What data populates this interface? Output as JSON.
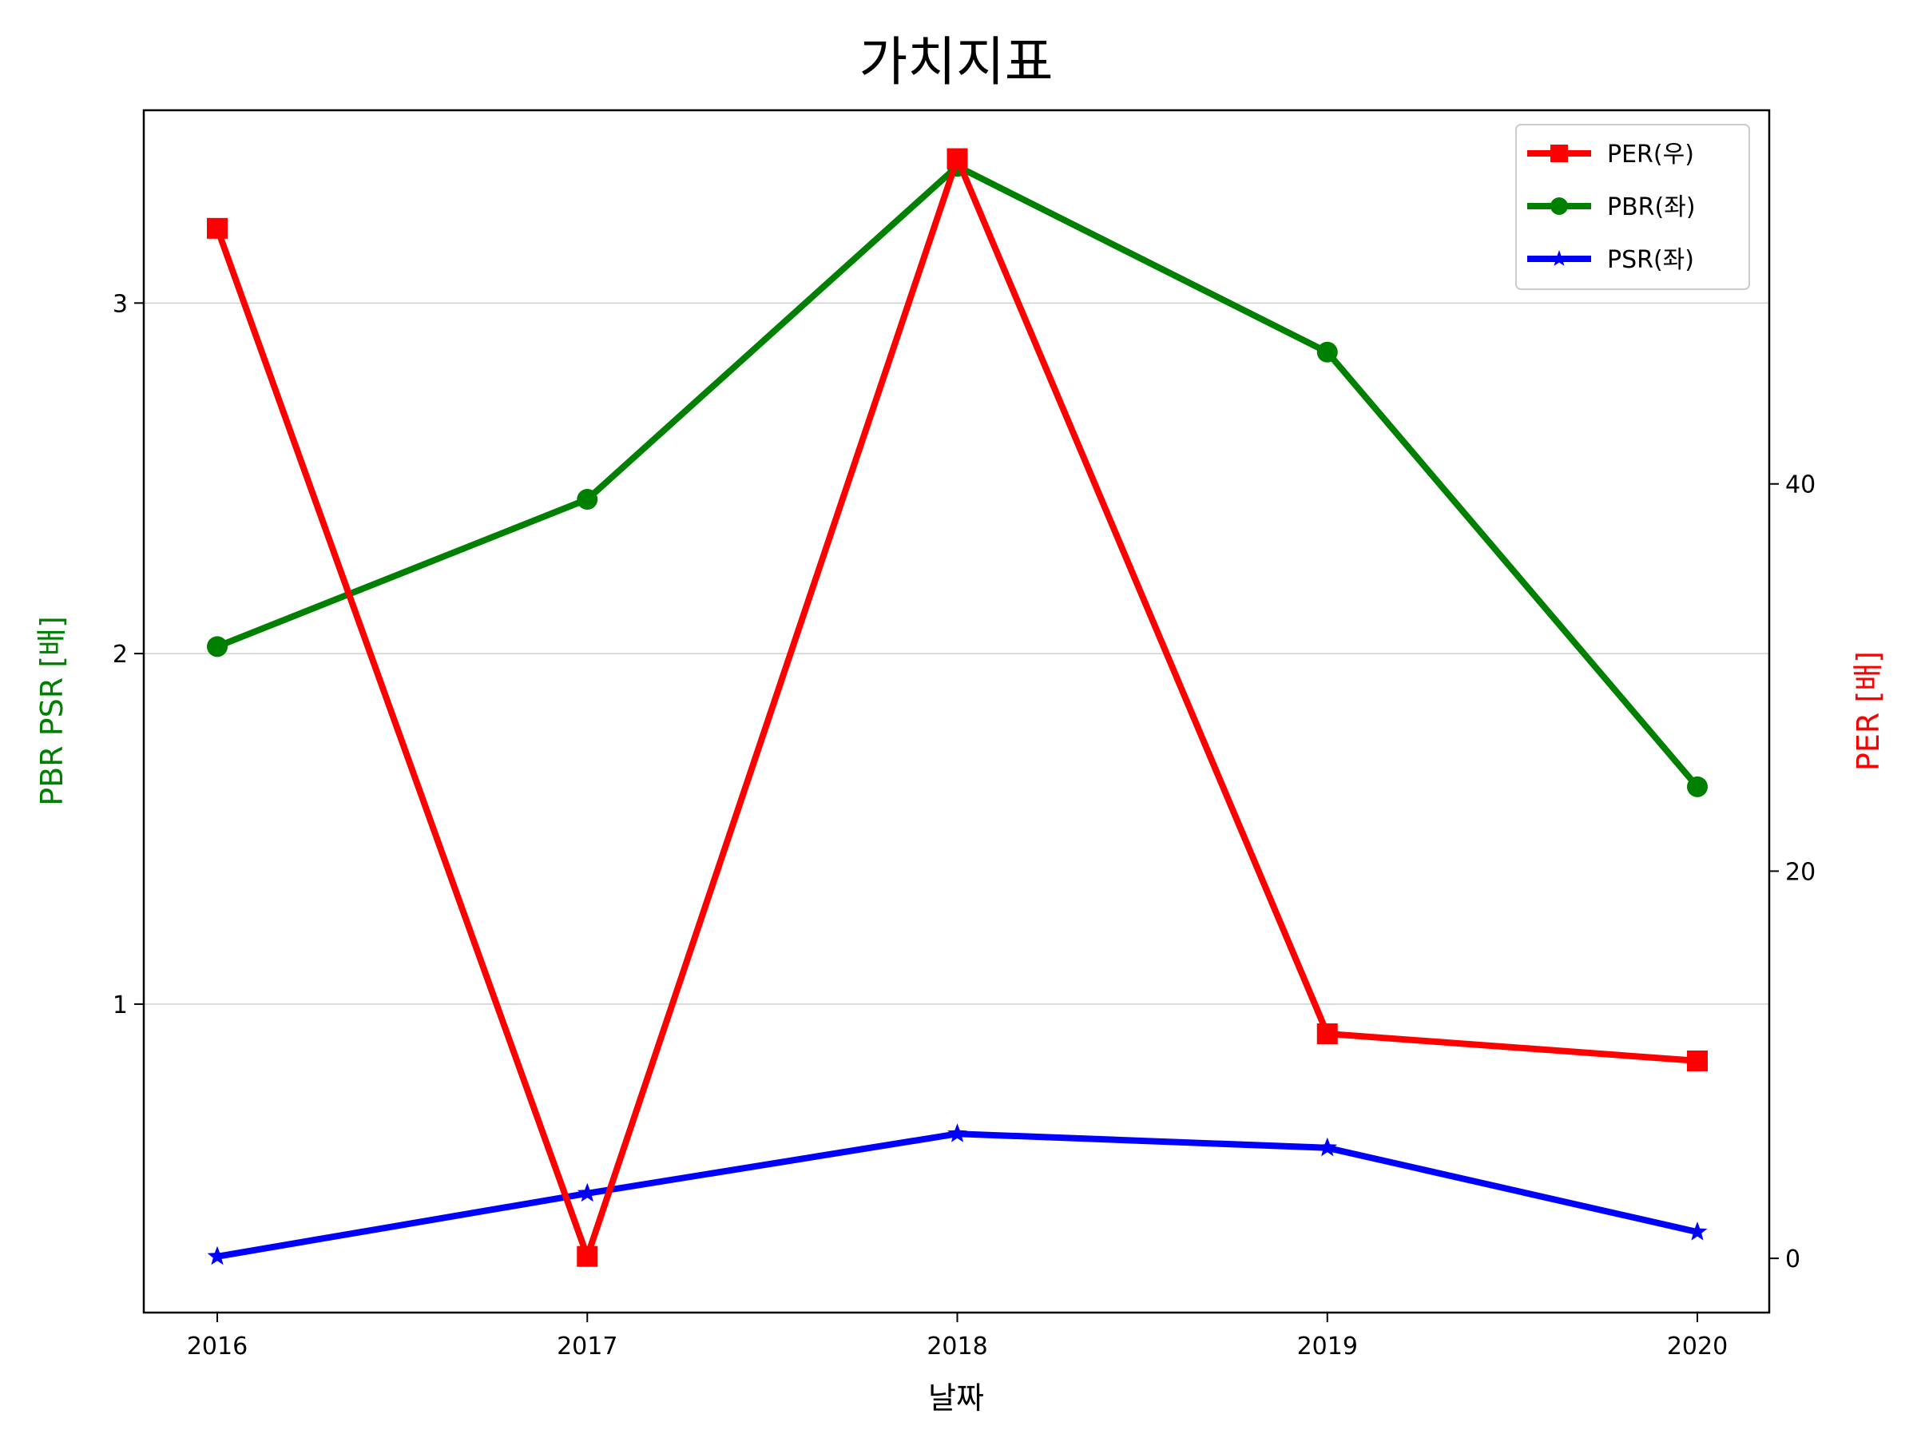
{
  "chart_data": {
    "type": "line",
    "title": "가치지표",
    "xlabel": "날짜",
    "ylabel_left": "PBR PSR [배]",
    "ylabel_right": "PER [배]",
    "x": [
      "2016",
      "2017",
      "2018",
      "2019",
      "2020"
    ],
    "left_axis": {
      "ylim": [
        0.12,
        3.55
      ],
      "ticks": [
        1,
        2,
        3
      ],
      "tick_labels": [
        "1",
        "2",
        "3"
      ],
      "grid": true
    },
    "right_axis": {
      "ylim": [
        -2.8,
        59.3
      ],
      "ticks": [
        0,
        20,
        40
      ],
      "tick_labels": [
        "0",
        "20",
        "40"
      ]
    },
    "series": [
      {
        "name": "PER(우)",
        "axis": "right",
        "color": "#ff0000",
        "marker": "square",
        "values": [
          53.2,
          0.1,
          56.8,
          11.6,
          10.2
        ]
      },
      {
        "name": "PBR(좌)",
        "axis": "left",
        "color": "#008000",
        "marker": "circle",
        "values": [
          2.02,
          2.44,
          3.39,
          2.86,
          1.62
        ]
      },
      {
        "name": "PSR(좌)",
        "axis": "left",
        "color": "#0000ff",
        "marker": "star",
        "values": [
          0.28,
          0.46,
          0.63,
          0.59,
          0.35
        ]
      }
    ],
    "legend_position": "top-right",
    "left_label_color": "#008000",
    "right_label_color": "#ff0000"
  }
}
